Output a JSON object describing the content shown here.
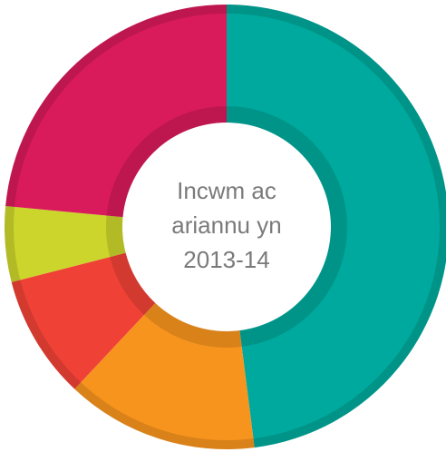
{
  "chart_data": {
    "type": "pie",
    "center_text": [
      "Incwm ac",
      "ariannu yn",
      "2013-14"
    ],
    "values": [
      48,
      14,
      9,
      5.5,
      23.5
    ],
    "colors": [
      "#00a99d",
      "#f7941e",
      "#ef4136",
      "#cbd52b",
      "#d91b5c"
    ],
    "donut": true
  }
}
